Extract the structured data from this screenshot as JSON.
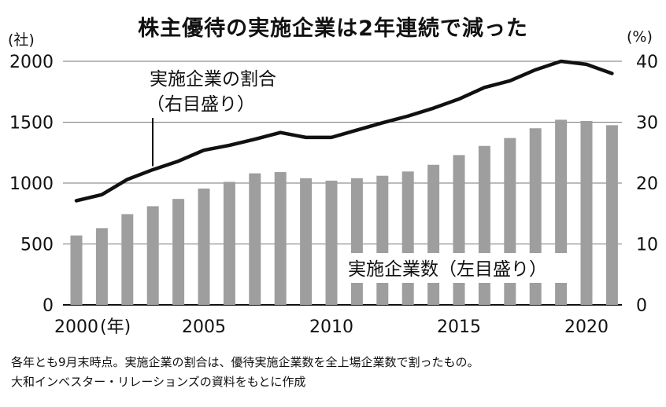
{
  "chart_data": {
    "type": "bar+line",
    "title": "株主優待の実施企業は2年連続で減った",
    "left_axis_unit": "(社)",
    "right_axis_unit": "(%)",
    "x": [
      2000,
      2001,
      2002,
      2003,
      2004,
      2005,
      2006,
      2007,
      2008,
      2009,
      2010,
      2011,
      2012,
      2013,
      2014,
      2015,
      2016,
      2017,
      2018,
      2019,
      2020,
      2021
    ],
    "x_tick_labels": [
      "2000",
      "2005",
      "2010",
      "2015",
      "2020"
    ],
    "x_first_label_suffix": "(年)",
    "left_ticks": [
      "2000",
      "1500",
      "1000",
      "500",
      "0"
    ],
    "right_ticks": [
      "40",
      "30",
      "20",
      "10",
      "0"
    ],
    "ylim_left": [
      0,
      2000
    ],
    "ylim_right": [
      0,
      40
    ],
    "grid": true,
    "bar_color": "#9e9e9e",
    "line_color": "#111111",
    "series": [
      {
        "name": "実施企業数（左目盛り）",
        "axis": "left",
        "kind": "bar",
        "values": [
          570,
          630,
          745,
          810,
          870,
          955,
          1010,
          1080,
          1090,
          1040,
          1020,
          1040,
          1060,
          1095,
          1150,
          1230,
          1305,
          1370,
          1450,
          1520,
          1510,
          1475
        ]
      },
      {
        "name": "実施企業の割合\n（右目盛り）",
        "axis": "right",
        "kind": "line",
        "values": [
          17.1,
          18.1,
          20.6,
          22.2,
          23.6,
          25.4,
          26.2,
          27.2,
          28.3,
          27.5,
          27.5,
          28.7,
          29.9,
          31.0,
          32.3,
          33.8,
          35.7,
          36.8,
          38.6,
          40.0,
          39.5,
          38.0
        ]
      }
    ]
  },
  "annotations": {
    "line_label_1": "実施企業の割合",
    "line_label_2": "（右目盛り）",
    "bar_label": "実施企業数（左目盛り）"
  },
  "notes": [
    "各年とも9月末時点。実施企業の割合は、優待実施企業数を全上場企業数で割ったもの。",
    "大和インベスター・リレーションズの資料をもとに作成"
  ]
}
